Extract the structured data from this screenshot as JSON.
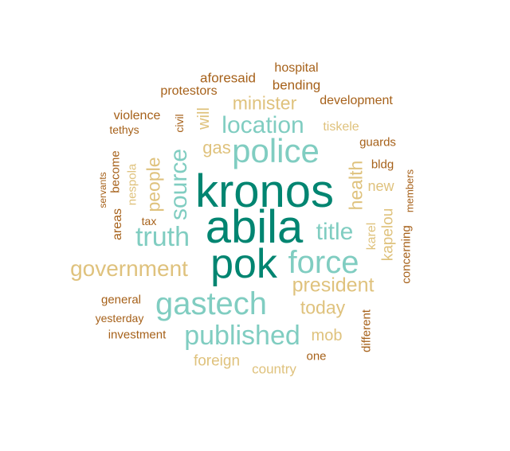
{
  "palette": {
    "dark_teal": "#018571",
    "light_teal": "#80cdc1",
    "tan": "#dfc27d",
    "brown": "#a6611a"
  },
  "words": {
    "kronos": "kronos",
    "abila": "abila",
    "pok": "pok",
    "police": "police",
    "force": "force",
    "gastech": "gastech",
    "published": "published",
    "truth": "truth",
    "location": "location",
    "source": "source",
    "title": "title",
    "government": "government",
    "president": "president",
    "minister": "minister",
    "people": "people",
    "today": "today",
    "health": "health",
    "gas": "gas",
    "will": "will",
    "mob": "mob",
    "foreign": "foreign",
    "country": "country",
    "new": "new",
    "kapelou": "kapelou",
    "karel": "karel",
    "tiskele": "tiskele",
    "nespola": "nespola",
    "hospital": "hospital",
    "bending": "bending",
    "aforesaid": "aforesaid",
    "protestors": "protestors",
    "development": "development",
    "violence": "violence",
    "civil": "civil",
    "tethys": "tethys",
    "guards": "guards",
    "bldg": "bldg",
    "servants": "servants",
    "become": "become",
    "areas": "areas",
    "tax": "tax",
    "members": "members",
    "concerning": "concerning",
    "general": "general",
    "yesterday": "yesterday",
    "investment": "investment",
    "different": "different",
    "one": "one"
  }
}
